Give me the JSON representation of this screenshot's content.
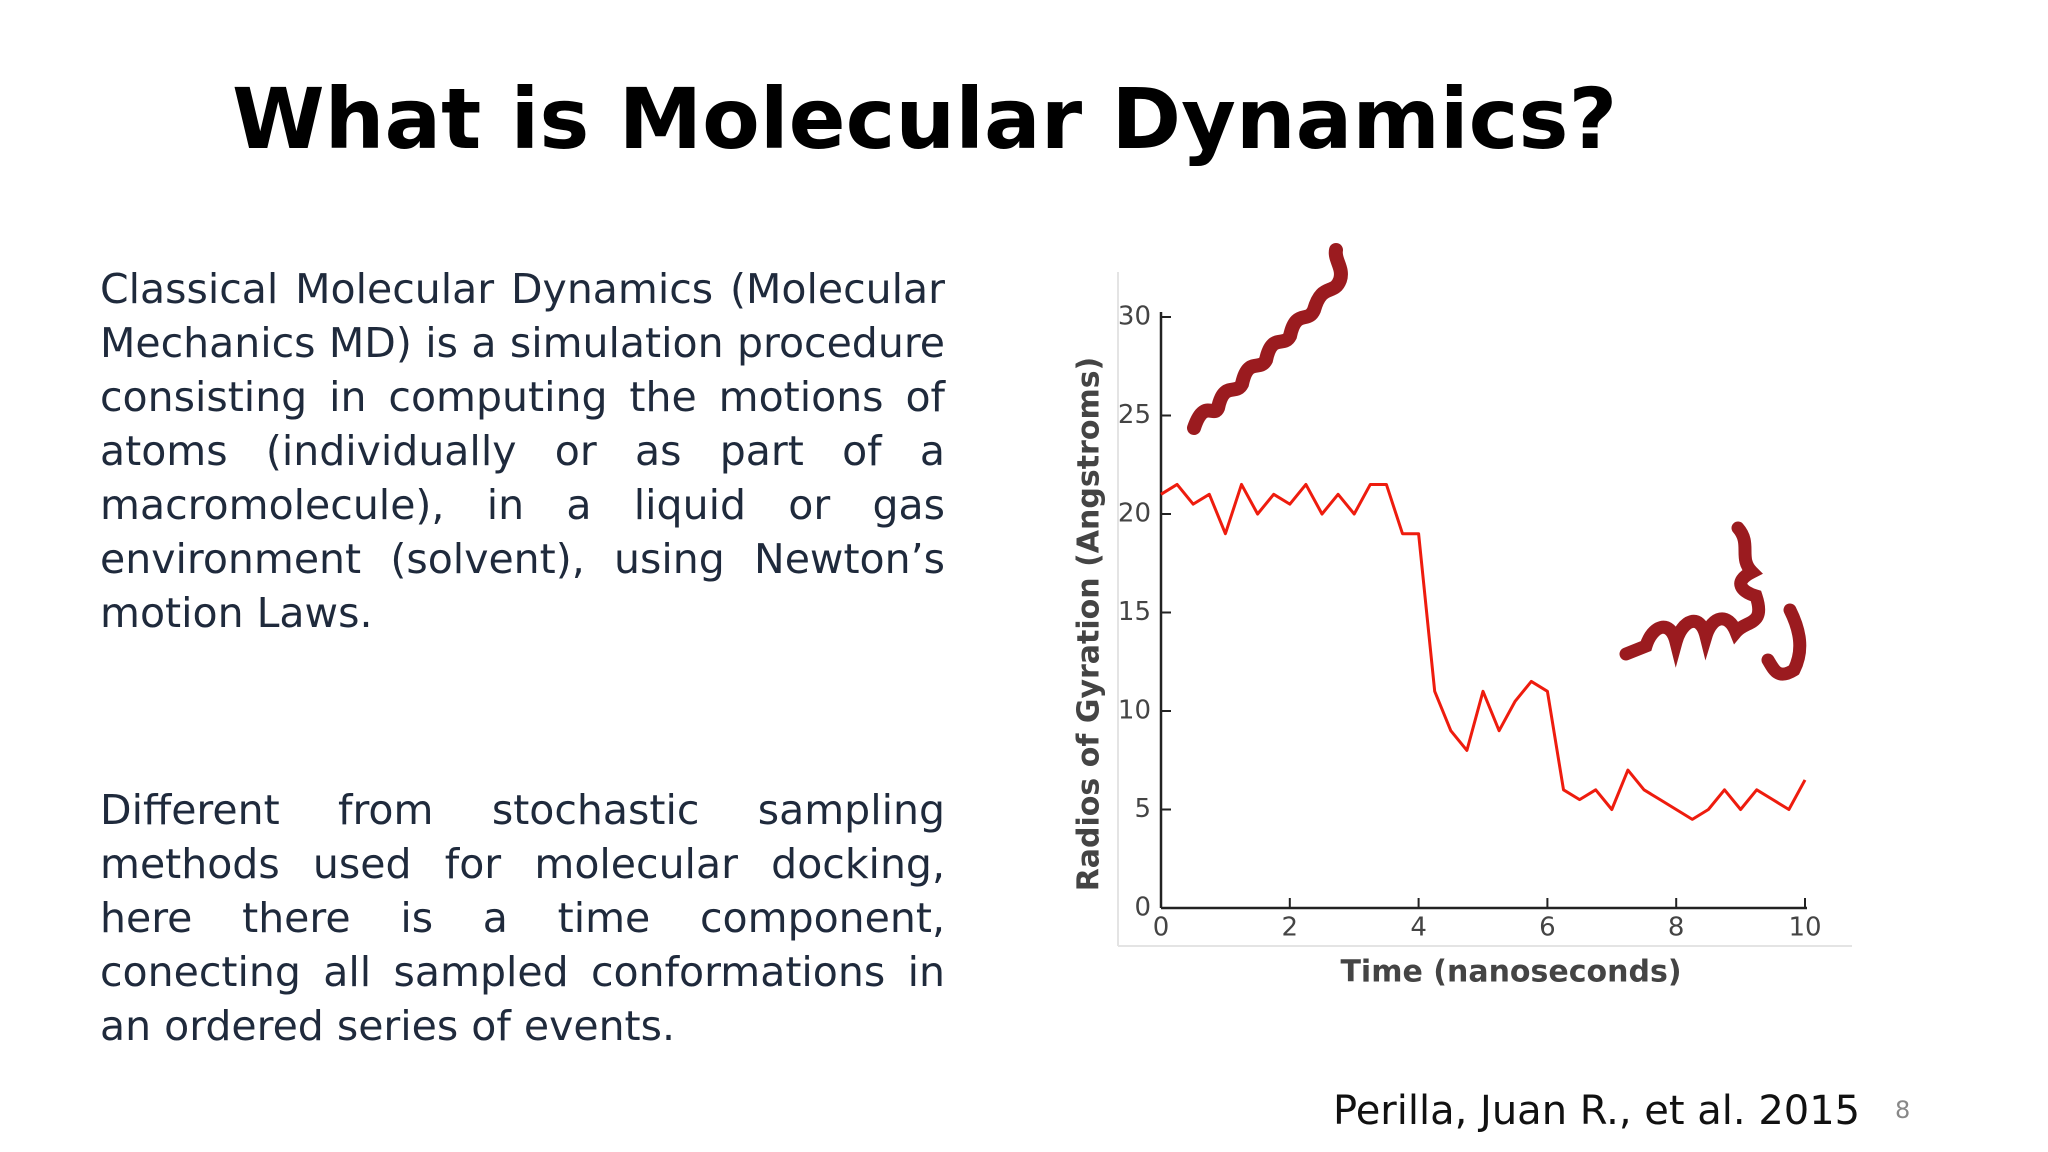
{
  "header": {
    "title": "What is Molecular Dynamics?"
  },
  "body": {
    "paragraphs": [
      "Classical Molecular Dynamics (Molecular Mechanics MD) is a simulation procedure consisting in computing the motions of atoms (individually or as part of a macromolecule), in a liquid or gas environment (solvent), using Newton’s motion Laws.",
      "Different from stochastic sampling methods used for molecular docking, here there is a time component, conecting all sampled conformations in an ordered series of events."
    ]
  },
  "chart_data": {
    "type": "line",
    "x_label": "Time (nanoseconds)",
    "y_label": "Radios of Gyration (Angstroms)",
    "x": [
      0,
      0.25,
      0.5,
      0.75,
      1,
      1.25,
      1.5,
      1.75,
      2,
      2.25,
      2.5,
      2.75,
      3,
      3.25,
      3.5,
      3.75,
      4,
      4.25,
      4.5,
      4.75,
      5,
      5.25,
      5.5,
      5.75,
      6,
      6.25,
      6.5,
      6.75,
      7,
      7.25,
      7.5,
      7.75,
      8,
      8.25,
      8.5,
      8.75,
      9,
      9.25,
      9.5,
      9.75,
      10
    ],
    "values": [
      21,
      21.5,
      20.5,
      21,
      19,
      21.5,
      20,
      21,
      20.5,
      21.5,
      20,
      21,
      20,
      21.5,
      21.5,
      19,
      19,
      11,
      9,
      8,
      11,
      9,
      10.5,
      11.5,
      11,
      6,
      5.5,
      6,
      5,
      7,
      6,
      5.5,
      5,
      4.5,
      5,
      6,
      5,
      6,
      5.5,
      5,
      6.5
    ],
    "color": "#ee1c0e",
    "xlim": [
      0,
      10
    ],
    "xticks": [
      0,
      2,
      4,
      6,
      8,
      10
    ],
    "ylim": [
      0,
      30
    ],
    "yticks": [
      0,
      5,
      10,
      15,
      20,
      25,
      30
    ]
  },
  "footer": {
    "citation": "Perilla, Juan R., et al. 2015",
    "page_number": "8"
  }
}
